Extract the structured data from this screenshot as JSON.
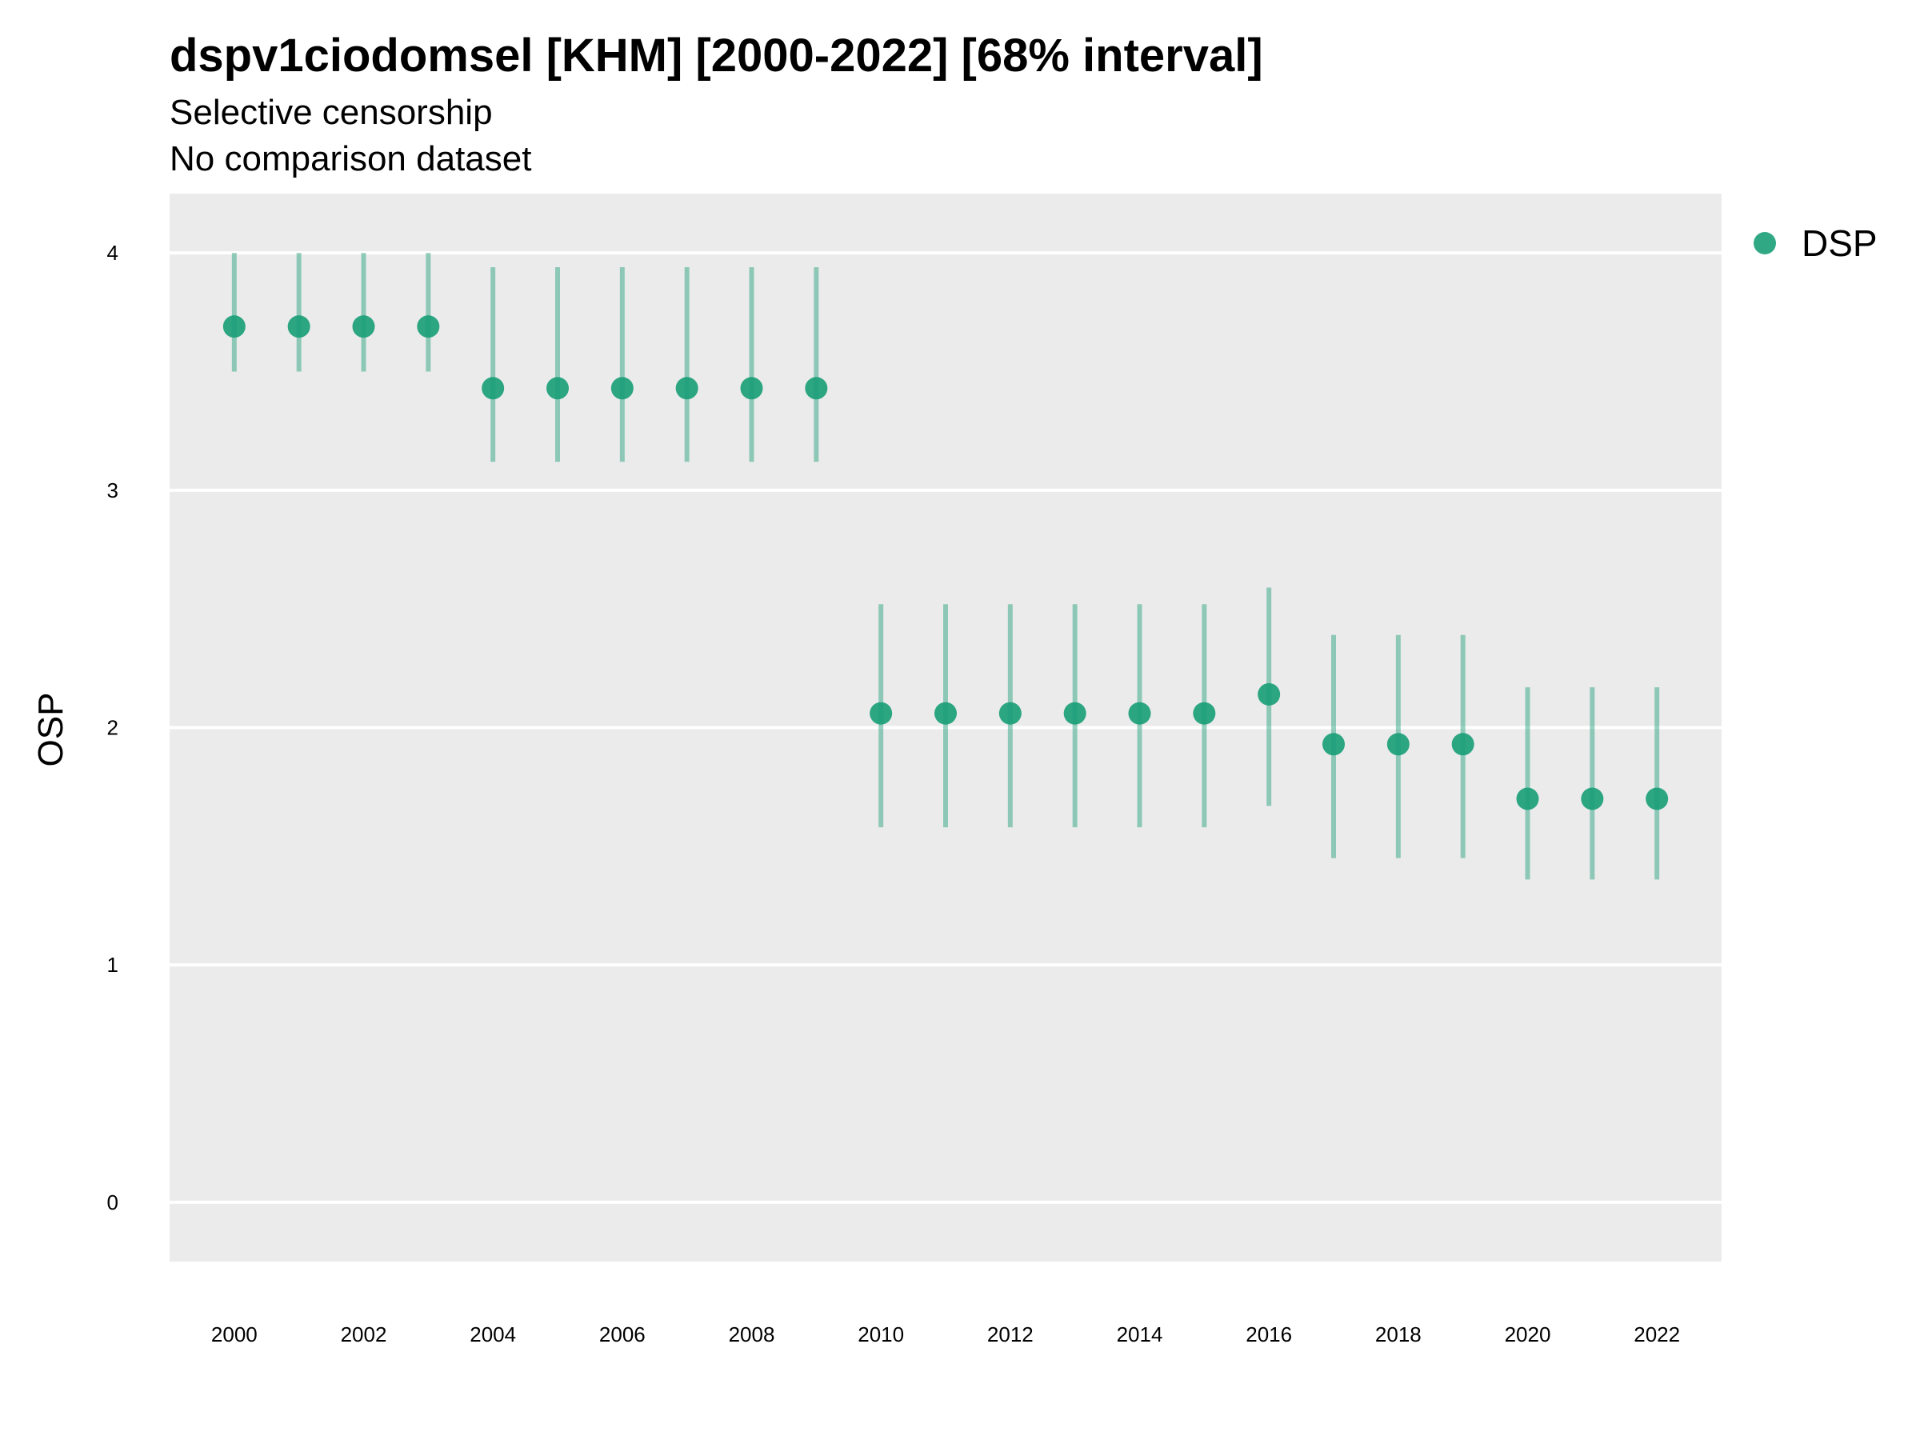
{
  "chart_data": {
    "type": "scatter",
    "title": "dspv1ciodomsel [KHM] [2000-2022] [68% interval]",
    "subtitle": "Selective censorship",
    "subtitle2": "No comparison dataset",
    "xlabel": "",
    "ylabel": "OSP",
    "xlim": [
      1999,
      2023
    ],
    "ylim": [
      -0.25,
      4.25
    ],
    "x_ticks": [
      2000,
      2002,
      2004,
      2006,
      2008,
      2010,
      2012,
      2014,
      2016,
      2018,
      2020,
      2022
    ],
    "y_ticks": [
      0,
      1,
      2,
      3,
      4
    ],
    "grid": true,
    "legend_position": "right",
    "series": [
      {
        "name": "DSP",
        "color": "#1b9e77",
        "points": [
          {
            "x": 2000,
            "y": 3.69,
            "lo": 3.5,
            "hi": 4.0
          },
          {
            "x": 2001,
            "y": 3.69,
            "lo": 3.5,
            "hi": 4.0
          },
          {
            "x": 2002,
            "y": 3.69,
            "lo": 3.5,
            "hi": 4.0
          },
          {
            "x": 2003,
            "y": 3.69,
            "lo": 3.5,
            "hi": 4.0
          },
          {
            "x": 2004,
            "y": 3.43,
            "lo": 3.12,
            "hi": 3.94
          },
          {
            "x": 2005,
            "y": 3.43,
            "lo": 3.12,
            "hi": 3.94
          },
          {
            "x": 2006,
            "y": 3.43,
            "lo": 3.12,
            "hi": 3.94
          },
          {
            "x": 2007,
            "y": 3.43,
            "lo": 3.12,
            "hi": 3.94
          },
          {
            "x": 2008,
            "y": 3.43,
            "lo": 3.12,
            "hi": 3.94
          },
          {
            "x": 2009,
            "y": 3.43,
            "lo": 3.12,
            "hi": 3.94
          },
          {
            "x": 2010,
            "y": 2.06,
            "lo": 1.58,
            "hi": 2.52
          },
          {
            "x": 2011,
            "y": 2.06,
            "lo": 1.58,
            "hi": 2.52
          },
          {
            "x": 2012,
            "y": 2.06,
            "lo": 1.58,
            "hi": 2.52
          },
          {
            "x": 2013,
            "y": 2.06,
            "lo": 1.58,
            "hi": 2.52
          },
          {
            "x": 2014,
            "y": 2.06,
            "lo": 1.58,
            "hi": 2.52
          },
          {
            "x": 2015,
            "y": 2.06,
            "lo": 1.58,
            "hi": 2.52
          },
          {
            "x": 2016,
            "y": 2.14,
            "lo": 1.67,
            "hi": 2.59
          },
          {
            "x": 2017,
            "y": 1.93,
            "lo": 1.45,
            "hi": 2.39
          },
          {
            "x": 2018,
            "y": 1.93,
            "lo": 1.45,
            "hi": 2.39
          },
          {
            "x": 2019,
            "y": 1.93,
            "lo": 1.45,
            "hi": 2.39
          },
          {
            "x": 2020,
            "y": 1.7,
            "lo": 1.36,
            "hi": 2.17
          },
          {
            "x": 2021,
            "y": 1.7,
            "lo": 1.36,
            "hi": 2.17
          },
          {
            "x": 2022,
            "y": 1.7,
            "lo": 1.36,
            "hi": 2.17
          }
        ]
      }
    ]
  }
}
